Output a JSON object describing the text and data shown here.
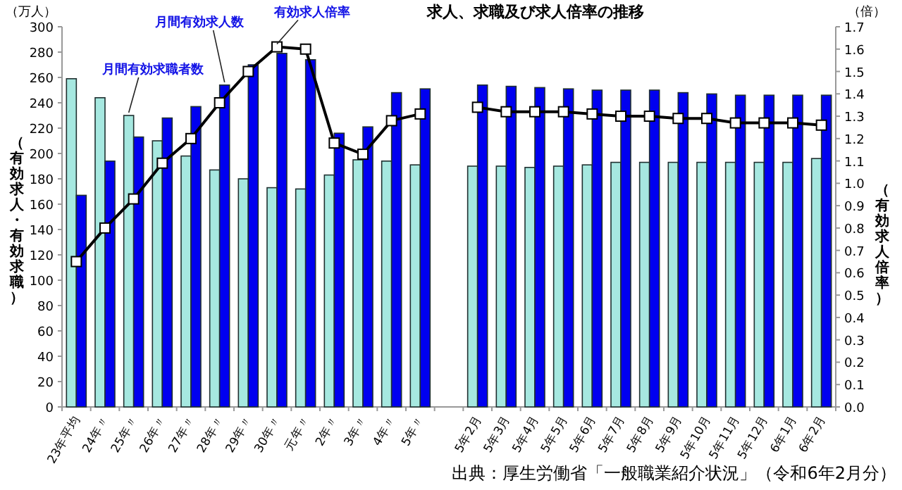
{
  "chart_data": {
    "type": "bar",
    "title": "求人、求職及び求人倍率の推移",
    "ylabel": "（有効求人・有効求職）",
    "y2label": "（有効求人倍率）",
    "annotations": [
      "（万人）",
      "（倍）",
      "出典：厚生労働省「一般職業紹介状況」（令和6年2月分）"
    ],
    "categories": [
      "23年平均",
      "24年〃",
      "25年〃",
      "26年〃",
      "27年〃",
      "28年〃",
      "29年〃",
      "30年〃",
      "元年〃",
      "2年〃",
      "3年〃",
      "4年〃",
      "5年〃",
      null,
      "5年2月",
      "5年3月",
      "5年4月",
      "5年5月",
      "5年6月",
      "5年7月",
      "5年8月",
      "5年9月",
      "5年10月",
      "5年11月",
      "5年12月",
      "6年1月",
      "6年2月"
    ],
    "series": [
      {
        "name": "月間有効求職者数",
        "color": "#a6e8e0",
        "values": [
          259,
          244,
          230,
          210,
          198,
          187,
          180,
          173,
          172,
          183,
          195,
          194,
          191,
          null,
          190,
          190,
          189,
          190,
          191,
          193,
          193,
          193,
          193,
          193,
          193,
          193,
          196
        ]
      },
      {
        "name": "月間有効求人数",
        "color": "#0000f0",
        "values": [
          167,
          194,
          213,
          228,
          237,
          254,
          270,
          279,
          274,
          216,
          221,
          248,
          251,
          null,
          254,
          253,
          252,
          251,
          250,
          250,
          250,
          248,
          247,
          246,
          246,
          246,
          246
        ]
      },
      {
        "name": "有効求人倍率",
        "type": "line",
        "axis": "y2",
        "color": "#000000",
        "marker": "square",
        "values": [
          0.65,
          0.8,
          0.93,
          1.09,
          1.2,
          1.36,
          1.5,
          1.61,
          1.6,
          1.18,
          1.13,
          1.28,
          1.31,
          null,
          1.34,
          1.32,
          1.32,
          1.32,
          1.31,
          1.3,
          1.3,
          1.29,
          1.29,
          1.27,
          1.27,
          1.27,
          1.26
        ]
      }
    ],
    "ylim": [
      0,
      300
    ],
    "yticks": [
      0,
      20,
      40,
      60,
      80,
      100,
      120,
      140,
      160,
      180,
      200,
      220,
      240,
      260,
      280,
      300
    ],
    "y2lim": [
      0,
      1.7
    ],
    "y2ticks": [
      {
        "value": 0,
        "label": "0.0"
      },
      0.1,
      0.2,
      0.3,
      0.4,
      0.5,
      0.6,
      0.7,
      0.8,
      0.9,
      {
        "value": 1,
        "label": "1.0"
      },
      1.1,
      1.2,
      1.3,
      1.4,
      1.5,
      1.6,
      1.7
    ]
  }
}
